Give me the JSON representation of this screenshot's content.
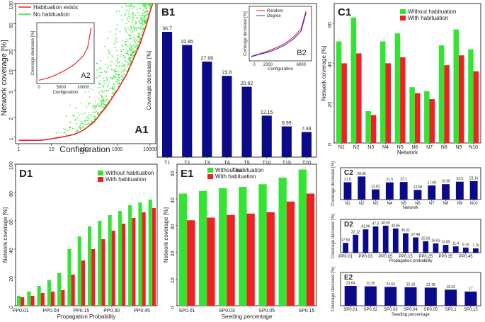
{
  "colors": {
    "green": "#33e433",
    "red": "#ee2222",
    "navy": "#0b0b8a",
    "blue": "#3333cc",
    "frame": "#000000"
  },
  "chart_data": [
    {
      "id": "A1",
      "type": "scatter",
      "panel_label": "A1",
      "title": "",
      "xlabel": "Configuration",
      "ylabel": "Network coverage [%]",
      "xscale": "log",
      "yscale": "log",
      "xlim": [
        0.8,
        15000
      ],
      "ylim": [
        0.8,
        100
      ],
      "xticks": [
        "1",
        "10",
        "100",
        "1000",
        "10000"
      ],
      "yticks": [
        "1",
        "2",
        "5",
        "10",
        "20",
        "50",
        "100"
      ],
      "legend": [
        "Habituation exists",
        "No habituation"
      ],
      "legend_position": "top-left",
      "series": [
        {
          "name": "Habituation exists",
          "style": "line",
          "x": [
            1,
            5,
            20,
            50,
            100,
            200,
            500,
            1000,
            2000,
            5000,
            8000,
            10000,
            12000
          ],
          "y": [
            0.9,
            0.9,
            1.0,
            1.1,
            1.3,
            1.7,
            3,
            5,
            9,
            25,
            50,
            75,
            100
          ]
        },
        {
          "name": "No habituation",
          "style": "points",
          "x": [
            10,
            20,
            30,
            50,
            70,
            100,
            150,
            200,
            300,
            500,
            700,
            1000,
            1500,
            2000,
            3000,
            4000,
            5000,
            7000,
            9000
          ],
          "y": [
            1.2,
            3,
            2,
            2.5,
            5,
            4,
            8,
            6,
            12,
            10,
            18,
            15,
            25,
            20,
            40,
            35,
            60,
            80,
            100
          ]
        }
      ],
      "inset": {
        "panel_label": "A2",
        "type": "line",
        "xlabel": "Configuration",
        "ylabel": "Coverage decrease [%]",
        "xticks": [
          "0",
          "5000",
          "10000"
        ],
        "xlim": [
          0,
          12000
        ],
        "ylim": [
          0,
          100
        ],
        "x": [
          0,
          2000,
          4000,
          6000,
          8000,
          10000,
          11000,
          11800
        ],
        "y": [
          2,
          6,
          12,
          20,
          30,
          45,
          60,
          95
        ]
      }
    },
    {
      "id": "B1",
      "type": "bar",
      "panel_label": "B1",
      "title": "",
      "xlabel": "Tau",
      "ylabel": "Coverage decrease [%]",
      "categories": [
        "T1",
        "T2",
        "T3",
        "T4",
        "T5",
        "T10",
        "T15",
        "T20"
      ],
      "values": [
        36.7,
        32.85,
        27.99,
        23.8,
        20.62,
        12.15,
        8.99,
        7.34
      ],
      "value_labels": [
        "36.7",
        "32.85",
        "27.99",
        "23.8",
        "20.62",
        "12.15",
        "8.99",
        "7.34"
      ],
      "ylim": [
        0,
        45
      ],
      "inset": {
        "panel_label": "B2",
        "type": "line",
        "xlabel": "Configuration",
        "ylabel": "Coverage decrease [%]",
        "xticks": [
          "0",
          "2000",
          "6000"
        ],
        "xlim": [
          0,
          7000
        ],
        "ylim": [
          0,
          100
        ],
        "legend": [
          "Random",
          "Degree"
        ],
        "series": [
          {
            "name": "Random",
            "x": [
              0,
              1000,
              2000,
              3000,
              4000,
              5000,
              6000,
              6600
            ],
            "y": [
              5,
              10,
              15,
              22,
              30,
              42,
              60,
              95
            ]
          },
          {
            "name": "Degree",
            "x": [
              0,
              1000,
              2000,
              3000,
              4000,
              5000,
              6000,
              6600
            ],
            "y": [
              4,
              9,
              13,
              19,
              27,
              38,
              55,
              92
            ]
          }
        ]
      }
    },
    {
      "id": "C1",
      "type": "bar",
      "panel_label": "C1",
      "title": "",
      "xlabel": "Network",
      "ylabel": "Network coverage [%]",
      "categories": [
        "N1",
        "N2",
        "N3",
        "N4",
        "N5",
        "N6",
        "N7",
        "N8",
        "N9",
        "N10"
      ],
      "yticks": [
        "0",
        "20",
        "40",
        "60"
      ],
      "ylim": [
        0,
        70
      ],
      "legend": [
        "Without habituation",
        "With habituation"
      ],
      "legend_position": "top-right",
      "series": [
        {
          "name": "Without habituation",
          "values": [
            51,
            63,
            16,
            51,
            55,
            28,
            26,
            49,
            57,
            47
          ]
        },
        {
          "name": "With habituation",
          "values": [
            40,
            45,
            14,
            40,
            43,
            25,
            22,
            39,
            44,
            36
          ]
        }
      ]
    },
    {
      "id": "D1",
      "type": "bar",
      "panel_label": "D1",
      "title": "",
      "xlabel": "Propagation Probability",
      "ylabel": "Network coverage [%]",
      "categories": [
        "PP0.01",
        "PP0.02",
        "PP0.03",
        "PP0.04",
        "PP0.05",
        "PP0.1",
        "PP0.15",
        "PP0.2",
        "PP0.25",
        "PP0.3",
        "PP0.35",
        "PP0.4",
        "PP0.45",
        "PP0.5"
      ],
      "tick_labels": [
        "PP0.01",
        "PP0.04",
        "PP0.15",
        "PP0.30",
        "PP0.45"
      ],
      "yticks": [
        "0",
        "20",
        "40",
        "60",
        "80",
        "100"
      ],
      "ylim": [
        0,
        100
      ],
      "legend": [
        "Without habituation",
        "With habituation"
      ],
      "legend_position": "top-left",
      "series": [
        {
          "name": "Without habituation",
          "values": [
            7,
            10,
            14,
            18,
            23,
            40,
            49,
            56,
            60,
            64,
            67,
            71,
            73,
            75
          ]
        },
        {
          "name": "With habituation",
          "values": [
            6,
            7,
            9,
            10,
            11,
            22,
            32,
            40,
            47,
            53,
            58,
            62,
            66,
            69
          ]
        }
      ]
    },
    {
      "id": "E1",
      "type": "bar",
      "panel_label": "E1",
      "title": "",
      "xlabel": "Seeding percentage",
      "ylabel": "Network coverage [%]",
      "categories": [
        "SP0.01",
        "SP0.02",
        "SP0.03",
        "SP0.04",
        "SP0.05",
        "SP0.1",
        "SP0.15"
      ],
      "tick_labels": [
        "SP0.01",
        "SP0.03",
        "SP0.05",
        "SP0.15"
      ],
      "yticks": [
        "0",
        "10",
        "20",
        "30",
        "40",
        "50"
      ],
      "ylim": [
        0,
        53
      ],
      "legend": [
        "Without habituation",
        "With habituation"
      ],
      "legend_position": "top-left",
      "series": [
        {
          "name": "Without habituation",
          "values": [
            42,
            43,
            44,
            44.5,
            45.5,
            48,
            51
          ]
        },
        {
          "name": "With habituation",
          "values": [
            32,
            33,
            34,
            34.5,
            35,
            39,
            42
          ]
        }
      ]
    },
    {
      "id": "C2",
      "type": "bar",
      "panel_label": "C2",
      "title": "",
      "xlabel": "Network",
      "ylabel": "Coverage decrease [%]",
      "categories": [
        "N1",
        "N2",
        "N3",
        "N4",
        "N5",
        "N6",
        "N7",
        "N8",
        "N9",
        "N10"
      ],
      "values": [
        21.8,
        28.95,
        12.82,
        21.6,
        22.1,
        12.08,
        17.68,
        19.36,
        22.5,
        23.16
      ],
      "value_labels": [
        "21.8",
        "28.95",
        "12.82",
        "21.6",
        "22.1",
        "12.08",
        "17.68",
        "19.36",
        "22.5",
        "23.16"
      ],
      "ylim": [
        0,
        40
      ]
    },
    {
      "id": "D2",
      "type": "bar",
      "panel_label": "D2",
      "title": "",
      "xlabel": "Propagation probability",
      "ylabel": "Coverage decrease [%]",
      "categories": [
        "PP0.01",
        "PP0.02",
        "PP0.03",
        "PP0.04",
        "PP0.05",
        "PP0.1",
        "PP0.15",
        "PP0.2",
        "PP0.25",
        "PP0.3",
        "PP0.35",
        "PP0.4",
        "PP0.45",
        "PP0.5"
      ],
      "tick_labels": [
        "PP0.01",
        "PP0.03",
        "PP0.05",
        "PP0.15",
        "PP0.25",
        "PP0.35",
        "PP0.45"
      ],
      "values": [
        17.63,
        32.12,
        41.96,
        47.3,
        48.65,
        43.65,
        35.01,
        27.48,
        20.59,
        16.63,
        13.89,
        11.4,
        9.16,
        7.79
      ],
      "value_labels": [
        "17.63",
        "32.12",
        "41.96",
        "47.3",
        "48.65",
        "43.65",
        "35.01",
        "27.48",
        "20.59",
        "16.63",
        "13.89",
        "11.4",
        "9.16",
        "7.79"
      ],
      "ylim": [
        0,
        60
      ]
    },
    {
      "id": "E2",
      "type": "bar",
      "panel_label": "E2",
      "title": "",
      "xlabel": "Seeding percentage",
      "ylabel": "Coverage decrease [%]",
      "categories": [
        "SP0.01",
        "SP0.02",
        "SP0.03",
        "SP0.04",
        "SP0.05",
        "SP0.1",
        "SP0.15"
      ],
      "values": [
        23.84,
        23.35,
        22.64,
        22.18,
        21.78,
        19.33,
        17
      ],
      "value_labels": [
        "23.84",
        "23.35",
        "22.64",
        "22.18",
        "21.78",
        "19.33",
        "17"
      ],
      "ylim": [
        0,
        40
      ]
    }
  ]
}
